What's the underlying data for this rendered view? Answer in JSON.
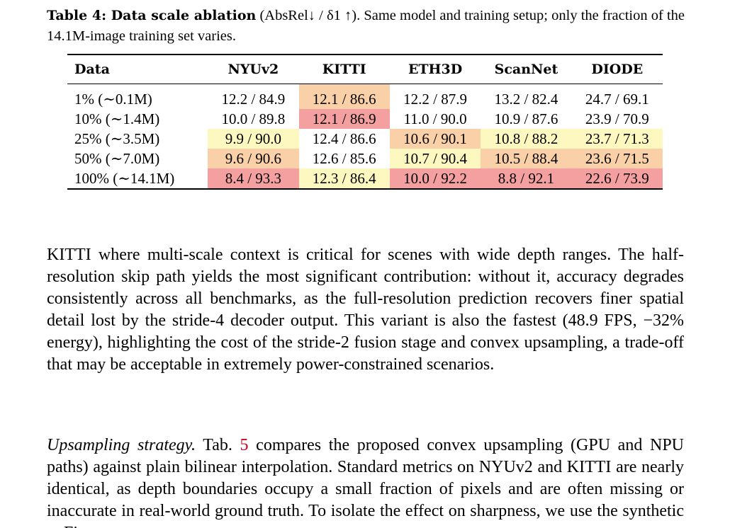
{
  "caption": {
    "label": "Table 4: Data scale ablation",
    "text": " (AbsRel↓ / δ1 ↑). Same model and training setup; only the fraction of the 14.1M-image training set varies."
  },
  "table": {
    "headers": [
      "Data",
      "NYUv2",
      "KITTI",
      "ETH3D",
      "ScanNet",
      "DIODE"
    ],
    "rows": [
      {
        "label": "1% (∼0.1M)",
        "cells": [
          "12.2 / 84.9",
          "12.1 / 86.6",
          "12.2 / 87.9",
          "13.2 / 82.4",
          "24.7 / 69.1"
        ]
      },
      {
        "label": "10% (∼1.4M)",
        "cells": [
          "10.0 / 89.8",
          "12.1 / 86.9",
          "11.0 / 90.0",
          "10.9 / 87.6",
          "23.9 / 70.9"
        ]
      },
      {
        "label": "25% (∼3.5M)",
        "cells": [
          "9.9 / 90.0",
          "12.4 / 86.6",
          "10.6 / 90.1",
          "10.8 / 88.2",
          "23.7 / 71.3"
        ]
      },
      {
        "label": "50% (∼7.0M)",
        "cells": [
          "9.6 / 90.6",
          "12.6 / 85.6",
          "10.7 / 90.4",
          "10.5 / 88.4",
          "23.6 / 71.5"
        ]
      },
      {
        "label": "100% (∼14.1M)",
        "cells": [
          "8.4 / 93.3",
          "12.3 / 86.4",
          "10.0 / 92.2",
          "8.8 / 92.1",
          "22.6 / 73.9"
        ]
      }
    ],
    "highlight_colors": {
      "best": "#f4a0a0",
      "second": "#fad0a8",
      "third": "#fdf8c0",
      "none": "#ffffff"
    },
    "highlights": [
      [
        "none",
        "second",
        "none",
        "none",
        "none"
      ],
      [
        "none",
        "best",
        "none",
        "none",
        "none"
      ],
      [
        "third",
        "none",
        "second",
        "third",
        "third"
      ],
      [
        "second",
        "none",
        "third",
        "second",
        "second"
      ],
      [
        "best",
        "third",
        "best",
        "best",
        "best"
      ]
    ]
  },
  "paragraph1": "KITTI where multi-scale context is critical for scenes with wide depth ranges. The half-resolution skip path yields the most significant contribution: without it, accuracy degrades consistently across all benchmarks, as the full-resolution prediction recovers finer spatial detail lost by the stride-4 decoder output. This variant is also the fastest (48.9 FPS, −32% energy), highlighting the cost of the stride-2 fusion stage and convex upsampling, a trade-off that may be acceptable in extremely power-constrained scenarios.",
  "paragraph2": {
    "heading": "Upsampling strategy.",
    "pre": " Tab. ",
    "ref": "5",
    "post": " compares the proposed convex upsampling (GPU and NPU paths) against plain bilinear interpolation. Standard metrics on NYUv2 and KITTI are nearly identical, as depth boundaries occupy a small fraction of pixels and are often missing or inaccurate in real-world ground truth. To isolate the effect on sharpness, we use the synthetic ... Figure ..."
  }
}
